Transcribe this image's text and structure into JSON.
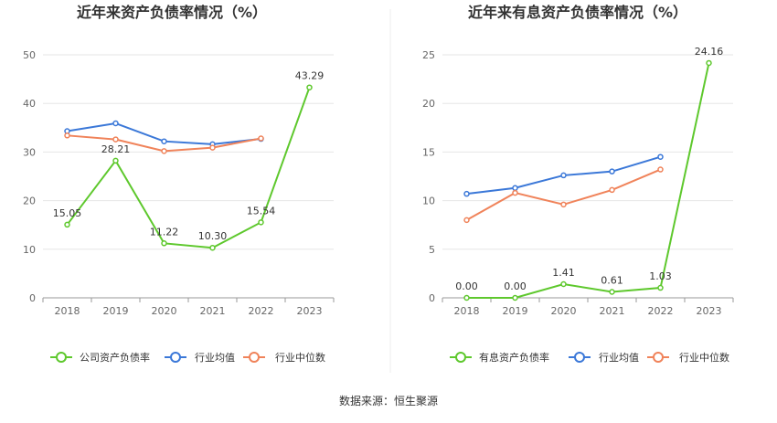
{
  "source": "数据来源：恒生聚源",
  "colors": {
    "company": "#5ec82d",
    "avg": "#3b78d8",
    "median": "#f0835a"
  },
  "chart_data": [
    {
      "type": "line",
      "title": "近年来资产负债率情况（%）",
      "categories": [
        "2018",
        "2019",
        "2020",
        "2021",
        "2022",
        "2023"
      ],
      "ylim": [
        0,
        50
      ],
      "yticks": [
        0,
        10,
        20,
        30,
        40,
        50
      ],
      "series": [
        {
          "name": "公司资产负债率",
          "values": [
            15.05,
            28.21,
            11.22,
            10.3,
            15.54,
            43.29
          ],
          "labels": [
            "15.05",
            "28.21",
            "11.22",
            "10.30",
            "15.54",
            "43.29"
          ]
        },
        {
          "name": "行业均值",
          "values": [
            34.3,
            35.9,
            32.2,
            31.6,
            32.7,
            null
          ]
        },
        {
          "name": "行业中位数",
          "values": [
            33.4,
            32.6,
            30.2,
            30.9,
            32.8,
            null
          ]
        }
      ],
      "legend": "bottom"
    },
    {
      "type": "line",
      "title": "近年来有息资产负债率情况（%）",
      "categories": [
        "2018",
        "2019",
        "2020",
        "2021",
        "2022",
        "2023"
      ],
      "ylim": [
        0,
        25
      ],
      "yticks": [
        0,
        5,
        10,
        15,
        20,
        25
      ],
      "series": [
        {
          "name": "有息资产负债率",
          "values": [
            0.0,
            0.0,
            1.41,
            0.61,
            1.03,
            24.16
          ],
          "labels": [
            "0.00",
            "0.00",
            "1.41",
            "0.61",
            "1.03",
            "24.16"
          ]
        },
        {
          "name": "行业均值",
          "values": [
            10.7,
            11.3,
            12.6,
            13.0,
            14.5,
            null
          ]
        },
        {
          "name": "行业中位数",
          "values": [
            8.0,
            10.8,
            9.6,
            11.1,
            13.2,
            null
          ]
        }
      ],
      "legend": "bottom"
    }
  ]
}
